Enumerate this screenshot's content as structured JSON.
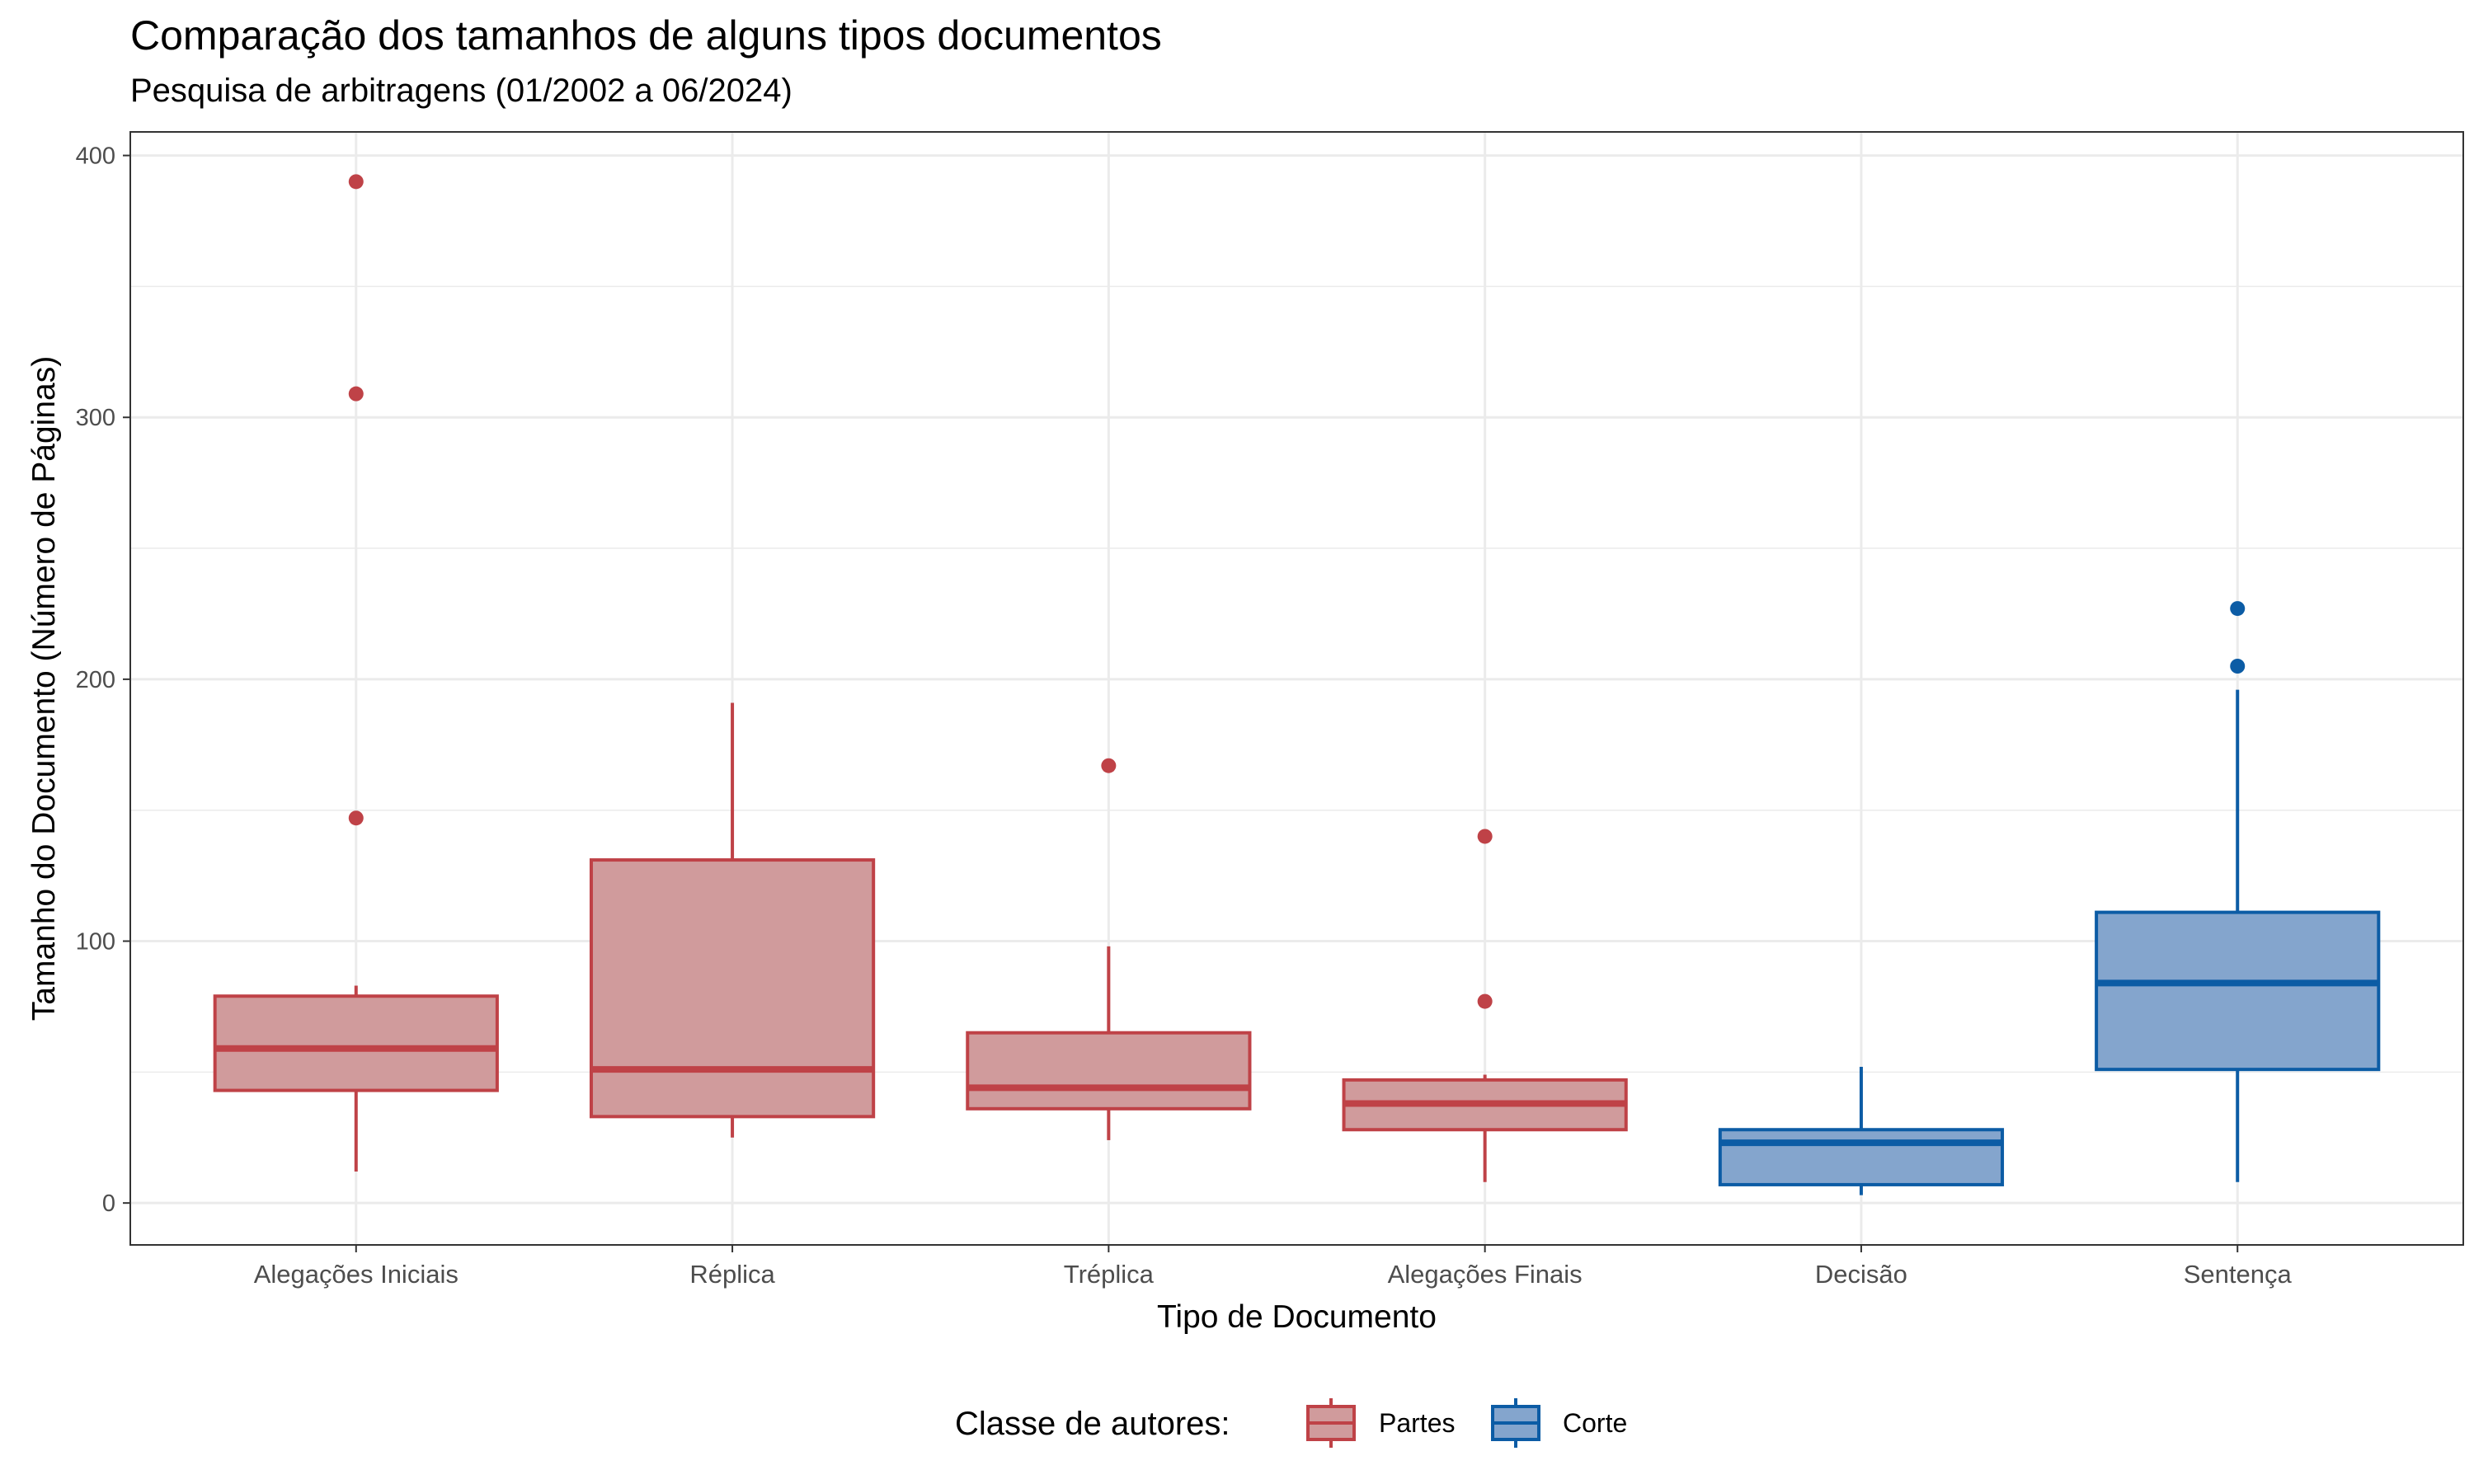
{
  "chart_data": {
    "type": "boxplot",
    "title": "Comparação dos tamanhos de alguns tipos documentos",
    "subtitle": "Pesquisa de arbitragens (01/2002 a 06/2024)",
    "xlabel": "Tipo de Documento",
    "ylabel": "Tamanho do Documento (Número de Páginas)",
    "ylim": [
      -16,
      409
    ],
    "yticks": [
      0,
      100,
      200,
      300,
      400
    ],
    "grid": true,
    "legend": {
      "title": "Classe de autores:",
      "position": "bottom",
      "entries": [
        {
          "label": "Partes",
          "group": "partes"
        },
        {
          "label": "Corte",
          "group": "corte"
        }
      ]
    },
    "groups": {
      "partes": {
        "stroke": "#BF4247",
        "fill": "#D09B9C"
      },
      "corte": {
        "stroke": "#0C5CA5",
        "fill": "#84A5CD"
      }
    },
    "categories": [
      "Alegações Iniciais",
      "Réplica",
      "Tréplica",
      "Alegações Finais",
      "Decisão",
      "Sentença"
    ],
    "boxes": [
      {
        "category": "Alegações Iniciais",
        "group": "partes",
        "min": 12,
        "q1": 43,
        "median": 59,
        "q3": 79,
        "max": 83,
        "outliers": [
          147,
          309,
          390
        ]
      },
      {
        "category": "Réplica",
        "group": "partes",
        "min": 25,
        "q1": 33,
        "median": 51,
        "q3": 131,
        "max": 191,
        "outliers": []
      },
      {
        "category": "Tréplica",
        "group": "partes",
        "min": 24,
        "q1": 36,
        "median": 44,
        "q3": 65,
        "max": 98,
        "outliers": [
          167
        ]
      },
      {
        "category": "Alegações Finais",
        "group": "partes",
        "min": 8,
        "q1": 28,
        "median": 38,
        "q3": 47,
        "max": 49,
        "outliers": [
          77,
          140
        ]
      },
      {
        "category": "Decisão",
        "group": "corte",
        "min": 3,
        "q1": 7,
        "median": 23,
        "q3": 28,
        "max": 52,
        "outliers": []
      },
      {
        "category": "Sentença",
        "group": "corte",
        "min": 8,
        "q1": 51,
        "median": 84,
        "q3": 111,
        "max": 196,
        "outliers": [
          205,
          227
        ]
      }
    ]
  }
}
